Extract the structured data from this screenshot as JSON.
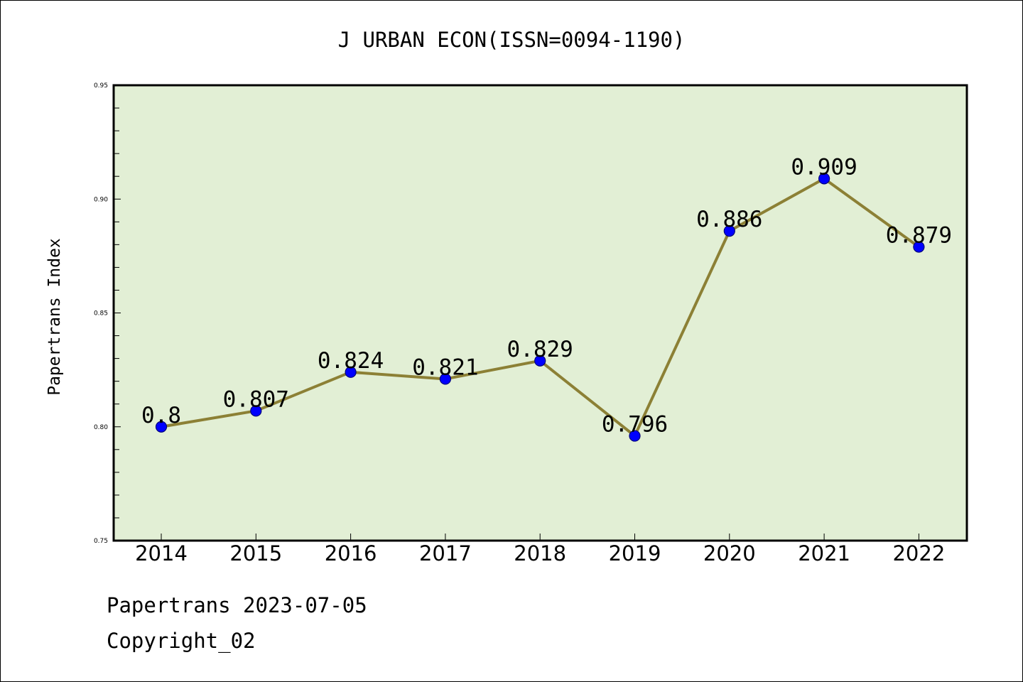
{
  "chart_data": {
    "type": "line",
    "title": "J URBAN ECON(ISSN=0094-1190)",
    "xlabel": "",
    "ylabel": "Papertrans Index",
    "categories": [
      "2014",
      "2015",
      "2016",
      "2017",
      "2018",
      "2019",
      "2020",
      "2021",
      "2022"
    ],
    "series": [
      {
        "values": [
          0.8,
          0.807,
          0.824,
          0.821,
          0.829,
          0.796,
          0.886,
          0.909,
          0.879
        ],
        "labels": [
          "0.8",
          "0.807",
          "0.824",
          "0.821",
          "0.829",
          "0.796",
          "0.886",
          "0.909",
          "0.879"
        ]
      }
    ],
    "ylim": [
      0.75,
      0.95
    ],
    "yticks": [
      "0.75",
      "0.80",
      "0.85",
      "0.90",
      "0.95"
    ],
    "grid": false,
    "colors": {
      "plot_background": "#e2efd5",
      "line": "#8c8035",
      "marker": "#0000ff",
      "marker_edge": "#00007a"
    }
  },
  "footer": {
    "date_text": "Papertrans 2023-07-05",
    "copyright_text": "Copyright_02"
  }
}
